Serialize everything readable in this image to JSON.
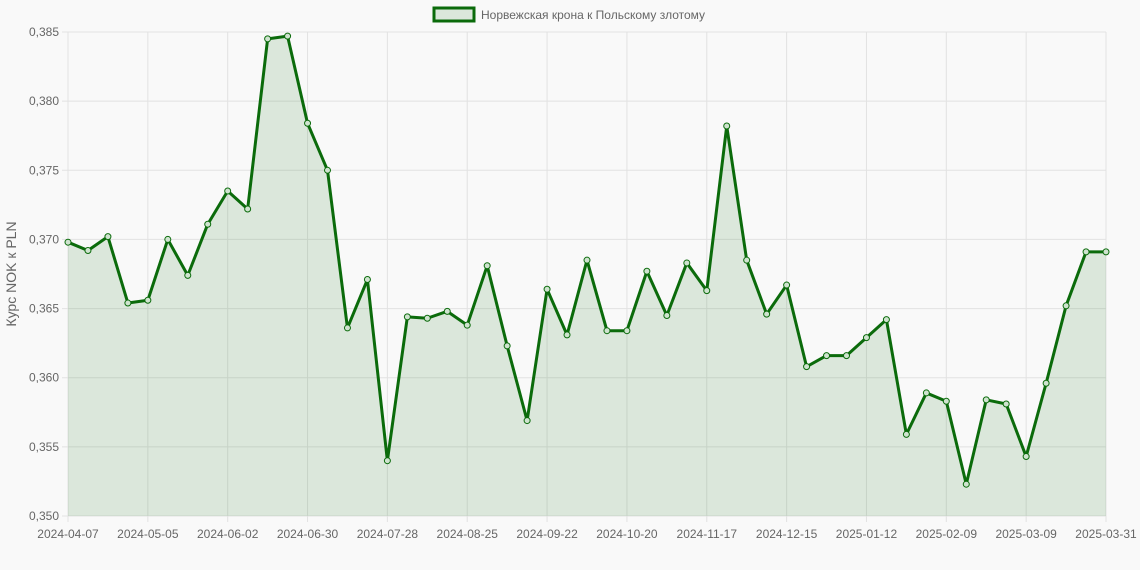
{
  "colors": {
    "line": "#0b6b0b",
    "fill": "rgba(11,107,11,0.12)",
    "grid": "#e2e2e2",
    "background": "#f9f9f9"
  },
  "chart_data": {
    "type": "line",
    "ylabel": "Курс NOK к PLN",
    "xlabel": "",
    "ylim": [
      0.35,
      0.385
    ],
    "ytick_values": [
      0.35,
      0.355,
      0.36,
      0.365,
      0.37,
      0.375,
      0.38,
      0.385
    ],
    "yticks": [
      "0,350",
      "0,355",
      "0,360",
      "0,365",
      "0,370",
      "0,375",
      "0,380",
      "0,385"
    ],
    "xticks": [
      "2024-04-07",
      "2024-05-05",
      "2024-06-02",
      "2024-06-30",
      "2024-07-28",
      "2024-08-25",
      "2024-09-22",
      "2024-10-20",
      "2024-11-17",
      "2024-12-15",
      "2025-01-12",
      "2025-02-09",
      "2025-03-09",
      "2025-03-31"
    ],
    "grid": true,
    "legend_position": "top-center",
    "series": [
      {
        "name": "Норвежская крона к Польскому злотому",
        "values": [
          0.3698,
          0.3692,
          0.3702,
          0.3654,
          0.3656,
          0.37,
          0.3674,
          0.3711,
          0.3735,
          0.3722,
          0.3845,
          0.3847,
          0.3784,
          0.375,
          0.3636,
          0.3671,
          0.354,
          0.3644,
          0.3643,
          0.3648,
          0.3638,
          0.3681,
          0.3623,
          0.3569,
          0.3664,
          0.3631,
          0.3685,
          0.3634,
          0.3634,
          0.3677,
          0.3645,
          0.3683,
          0.3663,
          0.3782,
          0.3685,
          0.3646,
          0.3667,
          0.3608,
          0.3616,
          0.3616,
          0.3629,
          0.3642,
          0.3559,
          0.3589,
          0.3583,
          0.3523,
          0.3584,
          0.3581,
          0.3543,
          0.3596,
          0.3652,
          0.3691,
          0.3691
        ]
      }
    ]
  }
}
